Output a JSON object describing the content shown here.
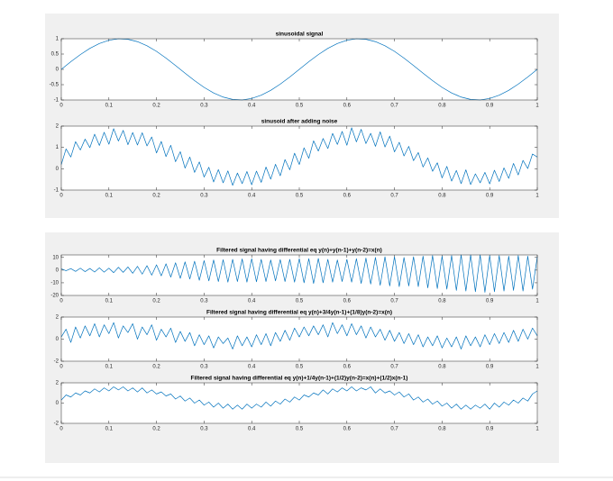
{
  "chart_data": [
    {
      "type": "line",
      "title": "sinusoidal signal",
      "color": "#0072bd",
      "x": [
        0,
        0.02,
        0.04,
        0.06,
        0.08,
        0.1,
        0.12,
        0.14,
        0.16,
        0.18,
        0.2,
        0.22,
        0.24,
        0.26,
        0.28,
        0.3,
        0.32,
        0.34,
        0.36,
        0.38,
        0.4,
        0.42,
        0.44,
        0.46,
        0.48,
        0.5,
        0.52,
        0.54,
        0.56,
        0.58,
        0.6,
        0.62,
        0.64,
        0.66,
        0.68,
        0.7,
        0.72,
        0.74,
        0.76,
        0.78,
        0.8,
        0.82,
        0.84,
        0.86,
        0.88,
        0.9,
        0.92,
        0.94,
        0.96,
        0.98,
        1
      ],
      "values": [
        0,
        0.249,
        0.482,
        0.685,
        0.844,
        0.951,
        0.998,
        0.982,
        0.905,
        0.771,
        0.588,
        0.368,
        0.125,
        -0.125,
        -0.368,
        -0.588,
        -0.771,
        -0.905,
        -0.982,
        -0.998,
        -0.951,
        -0.844,
        -0.685,
        -0.482,
        -0.249,
        0,
        0.249,
        0.482,
        0.685,
        0.844,
        0.951,
        0.998,
        0.982,
        0.905,
        0.771,
        0.588,
        0.368,
        0.125,
        -0.125,
        -0.368,
        -0.588,
        -0.771,
        -0.905,
        -0.982,
        -0.998,
        -0.951,
        -0.844,
        -0.685,
        -0.482,
        -0.249,
        0
      ],
      "xlim": [
        0,
        1
      ],
      "xticks": [
        0,
        0.1,
        0.2,
        0.3,
        0.4,
        0.5,
        0.6,
        0.7,
        0.8,
        0.9,
        1
      ],
      "ylim": [
        -1,
        1
      ],
      "yticks": [
        -1,
        -0.5,
        0,
        0.5,
        1
      ]
    },
    {
      "type": "line",
      "title": "sinusoid after adding noise",
      "color": "#0072bd",
      "x": [
        0,
        0.01,
        0.02,
        0.03,
        0.04,
        0.05,
        0.06,
        0.07,
        0.08,
        0.09,
        0.1,
        0.11,
        0.12,
        0.13,
        0.14,
        0.15,
        0.16,
        0.17,
        0.18,
        0.19,
        0.2,
        0.21,
        0.22,
        0.23,
        0.24,
        0.25,
        0.26,
        0.27,
        0.28,
        0.29,
        0.3,
        0.31,
        0.32,
        0.33,
        0.34,
        0.35,
        0.36,
        0.37,
        0.38,
        0.39,
        0.4,
        0.41,
        0.42,
        0.43,
        0.44,
        0.45,
        0.46,
        0.47,
        0.48,
        0.49,
        0.5,
        0.51,
        0.52,
        0.53,
        0.54,
        0.55,
        0.56,
        0.57,
        0.58,
        0.59,
        0.6,
        0.61,
        0.62,
        0.63,
        0.64,
        0.65,
        0.66,
        0.67,
        0.68,
        0.69,
        0.7,
        0.71,
        0.72,
        0.73,
        0.74,
        0.75,
        0.76,
        0.77,
        0.78,
        0.79,
        0.8,
        0.81,
        0.82,
        0.83,
        0.84,
        0.85,
        0.86,
        0.87,
        0.88,
        0.89,
        0.9,
        0.91,
        0.92,
        0.93,
        0.94,
        0.95,
        0.96,
        0.97,
        0.98,
        0.99,
        1
      ],
      "values": [
        0.2,
        0.93,
        0.55,
        1.27,
        0.88,
        1.39,
        0.99,
        1.62,
        1.09,
        1.71,
        1.15,
        1.88,
        1.3,
        1.8,
        1.13,
        1.7,
        1.11,
        1.69,
        1.07,
        1.49,
        0.74,
        1.28,
        0.57,
        1.1,
        0.33,
        0.8,
        0.03,
        0.55,
        -0.17,
        0.32,
        -0.39,
        0.07,
        -0.62,
        -0.04,
        -0.66,
        -0.1,
        -0.78,
        -0.2,
        -0.7,
        -0.13,
        -0.75,
        -0.11,
        -0.64,
        0.08,
        -0.49,
        0.21,
        -0.33,
        0.43,
        -0.05,
        0.73,
        0.2,
        0.98,
        0.49,
        1.31,
        0.83,
        1.42,
        0.95,
        1.66,
        1.14,
        1.75,
        1.1,
        1.92,
        1.26,
        1.85,
        1.18,
        1.66,
        1.05,
        1.73,
        1.02,
        1.53,
        0.79,
        1.24,
        0.6,
        1.05,
        0.38,
        0.76,
        0.08,
        0.51,
        -0.12,
        0.28,
        -0.43,
        0.11,
        -0.58,
        -0.08,
        -0.7,
        -0.05,
        -0.74,
        -0.24,
        -0.66,
        -0.17,
        -0.71,
        -0.07,
        -0.6,
        0.04,
        -0.45,
        0.25,
        -0.29,
        0.39,
        0.01,
        0.69,
        0.55
      ],
      "xlim": [
        0,
        1
      ],
      "xticks": [
        0,
        0.1,
        0.2,
        0.3,
        0.4,
        0.5,
        0.6,
        0.7,
        0.8,
        0.9,
        1
      ],
      "ylim": [
        -1,
        2
      ],
      "yticks": [
        -1,
        0,
        1,
        2
      ]
    },
    {
      "type": "line",
      "title": "Filtered signal having differential eq y(n)+y(n-1)+y(n-2)=x(n)",
      "color": "#0072bd",
      "x": [
        0,
        0.01,
        0.02,
        0.03,
        0.04,
        0.05,
        0.06,
        0.07,
        0.08,
        0.09,
        0.1,
        0.11,
        0.12,
        0.13,
        0.14,
        0.15,
        0.16,
        0.17,
        0.18,
        0.19,
        0.2,
        0.21,
        0.22,
        0.23,
        0.24,
        0.25,
        0.26,
        0.27,
        0.28,
        0.29,
        0.3,
        0.31,
        0.32,
        0.33,
        0.34,
        0.35,
        0.36,
        0.37,
        0.38,
        0.39,
        0.4,
        0.41,
        0.42,
        0.43,
        0.44,
        0.45,
        0.46,
        0.47,
        0.48,
        0.49,
        0.5,
        0.51,
        0.52,
        0.53,
        0.54,
        0.55,
        0.56,
        0.57,
        0.58,
        0.59,
        0.6,
        0.61,
        0.62,
        0.63,
        0.64,
        0.65,
        0.66,
        0.67,
        0.68,
        0.69,
        0.7,
        0.71,
        0.72,
        0.73,
        0.74,
        0.75,
        0.76,
        0.77,
        0.78,
        0.79,
        0.8,
        0.81,
        0.82,
        0.83,
        0.84,
        0.85,
        0.86,
        0.87,
        0.88,
        0.89,
        0.9,
        0.91,
        0.92,
        0.93,
        0.94,
        0.95,
        0.96,
        0.97,
        0.98,
        0.99,
        1
      ],
      "values": [
        1,
        -0.5,
        1.2,
        -1,
        1.5,
        -1.2,
        1.3,
        -1.5,
        1.8,
        -1.6,
        1.5,
        -2,
        2.2,
        -1.8,
        2.5,
        -2.5,
        3,
        -3.2,
        3.5,
        -4,
        4.2,
        -4.5,
        5,
        -5.5,
        5.8,
        -6.5,
        6.5,
        -7,
        7,
        -8,
        7.5,
        -8.5,
        8,
        -9,
        8.2,
        -9.5,
        8.5,
        -9,
        8.8,
        -9.5,
        9,
        -9.2,
        8.5,
        -9,
        8,
        -8.5,
        8.3,
        -9,
        8.5,
        -9.5,
        9,
        -10,
        9,
        -10.5,
        9.2,
        -10,
        8.5,
        -9.5,
        8,
        -9,
        8.5,
        -9.5,
        9,
        -10.5,
        9.5,
        -11,
        10,
        -12,
        10.5,
        -12.5,
        10.5,
        -13,
        10,
        -12.5,
        10.5,
        -13,
        11,
        -14,
        11.5,
        -14.5,
        11,
        -15,
        11.5,
        -16,
        12,
        -16.5,
        12,
        -17,
        12,
        -17.5,
        11.5,
        -17,
        11.5,
        -16.5,
        11,
        -16,
        11.5,
        -16.5,
        11,
        -15,
        10.5
      ],
      "xlim": [
        0,
        1
      ],
      "xticks": [
        0,
        0.1,
        0.2,
        0.3,
        0.4,
        0.5,
        0.6,
        0.7,
        0.8,
        0.9,
        1
      ],
      "ylim": [
        -20,
        12
      ],
      "yticks": [
        -20,
        -10,
        0,
        10
      ]
    },
    {
      "type": "line",
      "title": "Filtered signal having differential eq y(n)+3/4y(n-1)+(1/8)y(n-2)=x(n)",
      "color": "#0072bd",
      "x": [
        0,
        0.01,
        0.02,
        0.03,
        0.04,
        0.05,
        0.06,
        0.07,
        0.08,
        0.09,
        0.1,
        0.11,
        0.12,
        0.13,
        0.14,
        0.15,
        0.16,
        0.17,
        0.18,
        0.19,
        0.2,
        0.21,
        0.22,
        0.23,
        0.24,
        0.25,
        0.26,
        0.27,
        0.28,
        0.29,
        0.3,
        0.31,
        0.32,
        0.33,
        0.34,
        0.35,
        0.36,
        0.37,
        0.38,
        0.39,
        0.4,
        0.41,
        0.42,
        0.43,
        0.44,
        0.45,
        0.46,
        0.47,
        0.48,
        0.49,
        0.5,
        0.51,
        0.52,
        0.53,
        0.54,
        0.55,
        0.56,
        0.57,
        0.58,
        0.59,
        0.6,
        0.61,
        0.62,
        0.63,
        0.64,
        0.65,
        0.66,
        0.67,
        0.68,
        0.69,
        0.7,
        0.71,
        0.72,
        0.73,
        0.74,
        0.75,
        0.76,
        0.77,
        0.78,
        0.79,
        0.8,
        0.81,
        0.82,
        0.83,
        0.84,
        0.85,
        0.86,
        0.87,
        0.88,
        0.89,
        0.9,
        0.91,
        0.92,
        0.93,
        0.94,
        0.95,
        0.96,
        0.97,
        0.98,
        0.99,
        1
      ],
      "values": [
        0.2,
        0.9,
        -0.3,
        1.1,
        0.1,
        1.2,
        0.3,
        1.4,
        0.2,
        1.3,
        0.5,
        1.5,
        0.1,
        1.2,
        0.6,
        1.4,
        0,
        1.1,
        0.4,
        1.3,
        -0.1,
        0.9,
        0.2,
        1,
        -0.3,
        0.7,
        -0.2,
        0.6,
        -0.6,
        0.4,
        -0.5,
        0.3,
        -0.8,
        0.2,
        -0.4,
        0.1,
        -0.9,
        0.3,
        -0.6,
        0.2,
        -0.7,
        0.4,
        -0.5,
        0.5,
        -0.6,
        0.6,
        -0.2,
        0.8,
        -0.1,
        1,
        0.2,
        1.1,
        0.3,
        1.2,
        0.4,
        1.3,
        0.2,
        1.5,
        0.5,
        1.3,
        0.3,
        1.4,
        0.4,
        1.2,
        0.1,
        1.1,
        0.2,
        0.9,
        -0.1,
        0.8,
        -0.2,
        0.6,
        -0.4,
        0.5,
        -0.5,
        0.4,
        -0.7,
        0.2,
        -0.6,
        0.3,
        -0.8,
        0.1,
        -0.7,
        0.2,
        -0.9,
        0.3,
        -0.6,
        0.2,
        -0.7,
        0.4,
        -0.5,
        0.5,
        -0.4,
        0.6,
        -0.3,
        0.8,
        -0.2,
        0.9,
        0,
        1,
        0.3
      ],
      "xlim": [
        0,
        1
      ],
      "xticks": [
        0,
        0.1,
        0.2,
        0.3,
        0.4,
        0.5,
        0.6,
        0.7,
        0.8,
        0.9,
        1
      ],
      "ylim": [
        -2,
        2
      ],
      "yticks": [
        -2,
        0,
        2
      ]
    },
    {
      "type": "line",
      "title": "Filtered signal having differential eq y(n)+1/4y(n-1)+(1/2)y(n-2)=x(n)+(1/2)x(n-1)",
      "color": "#0072bd",
      "x": [
        0,
        0.01,
        0.02,
        0.03,
        0.04,
        0.05,
        0.06,
        0.07,
        0.08,
        0.09,
        0.1,
        0.11,
        0.12,
        0.13,
        0.14,
        0.15,
        0.16,
        0.17,
        0.18,
        0.19,
        0.2,
        0.21,
        0.22,
        0.23,
        0.24,
        0.25,
        0.26,
        0.27,
        0.28,
        0.29,
        0.3,
        0.31,
        0.32,
        0.33,
        0.34,
        0.35,
        0.36,
        0.37,
        0.38,
        0.39,
        0.4,
        0.41,
        0.42,
        0.43,
        0.44,
        0.45,
        0.46,
        0.47,
        0.48,
        0.49,
        0.5,
        0.51,
        0.52,
        0.53,
        0.54,
        0.55,
        0.56,
        0.57,
        0.58,
        0.59,
        0.6,
        0.61,
        0.62,
        0.63,
        0.64,
        0.65,
        0.66,
        0.67,
        0.68,
        0.69,
        0.7,
        0.71,
        0.72,
        0.73,
        0.74,
        0.75,
        0.76,
        0.77,
        0.78,
        0.79,
        0.8,
        0.81,
        0.82,
        0.83,
        0.84,
        0.85,
        0.86,
        0.87,
        0.88,
        0.89,
        0.9,
        0.91,
        0.92,
        0.93,
        0.94,
        0.95,
        0.96,
        0.97,
        0.98,
        0.99,
        1
      ],
      "values": [
        0.3,
        0.8,
        0.6,
        1,
        0.8,
        1.2,
        1,
        1.4,
        1.1,
        1.5,
        1.2,
        1.6,
        1.3,
        1.6,
        1.2,
        1.5,
        1.1,
        1.5,
        1,
        1.3,
        0.9,
        1.1,
        0.7,
        0.9,
        0.4,
        0.7,
        0.2,
        0.5,
        0,
        0.3,
        -0.2,
        0.1,
        -0.4,
        0,
        -0.5,
        -0.1,
        -0.6,
        -0.2,
        -0.6,
        -0.1,
        -0.5,
        -0.1,
        -0.4,
        0.1,
        -0.3,
        0.2,
        -0.1,
        0.4,
        0.1,
        0.6,
        0.3,
        0.8,
        0.6,
        1,
        0.8,
        1.3,
        0.9,
        1.4,
        1.1,
        1.5,
        1.2,
        1.6,
        1.2,
        1.5,
        1.3,
        1.6,
        1,
        1.4,
        1,
        1.2,
        0.8,
        1.1,
        0.6,
        0.9,
        0.3,
        0.6,
        0.1,
        0.4,
        -0.1,
        0.2,
        -0.3,
        0,
        -0.5,
        -0.1,
        -0.6,
        -0.2,
        -0.6,
        -0.2,
        -0.5,
        -0.1,
        -0.6,
        0,
        -0.4,
        0.1,
        -0.2,
        0.3,
        0,
        0.5,
        0.2,
        0.9,
        1.2
      ],
      "xlim": [
        0,
        1
      ],
      "xticks": [
        0,
        0.1,
        0.2,
        0.3,
        0.4,
        0.5,
        0.6,
        0.7,
        0.8,
        0.9,
        1
      ],
      "ylim": [
        -2,
        2
      ],
      "yticks": [
        -2,
        0,
        2
      ]
    }
  ]
}
